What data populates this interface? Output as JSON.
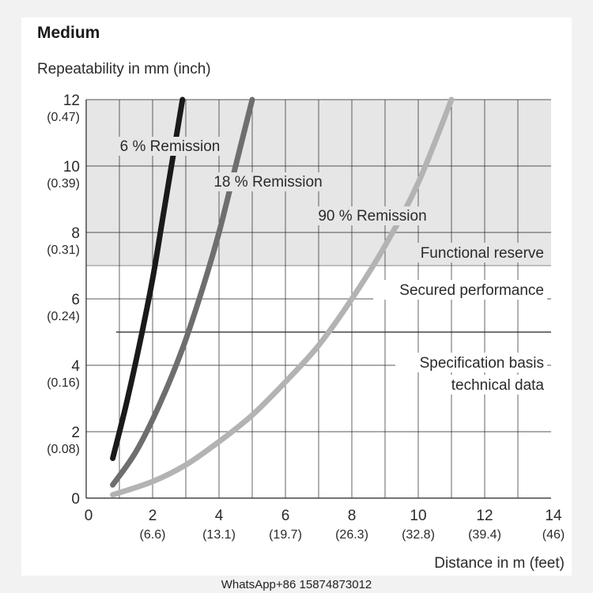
{
  "title": "Medium",
  "watermark": "WhatsApp+86 15874873012",
  "colors": {
    "page_bg": "#f2f2f2",
    "panel_bg": "#ffffff",
    "reserve_zone": "#e6e6e6",
    "grid": "#222222",
    "series_6": "#1a1a1a",
    "series_18": "#6e6e6e",
    "series_90": "#b3b3b3"
  },
  "chart_data": {
    "type": "line",
    "ylabel": "Repeatability in mm (inch)",
    "xlabel": "Distance in m (feet)",
    "xlim": [
      0,
      14
    ],
    "ylim": [
      0,
      12
    ],
    "x_ticks": [
      {
        "v": 0,
        "main": "0",
        "sub": ""
      },
      {
        "v": 2,
        "main": "2",
        "sub": "(6.6)"
      },
      {
        "v": 4,
        "main": "4",
        "sub": "(13.1)"
      },
      {
        "v": 6,
        "main": "6",
        "sub": "(19.7)"
      },
      {
        "v": 8,
        "main": "8",
        "sub": "(26.3)"
      },
      {
        "v": 10,
        "main": "10",
        "sub": "(32.8)"
      },
      {
        "v": 12,
        "main": "12",
        "sub": "(39.4)"
      },
      {
        "v": 14,
        "main": "14",
        "sub": "(46)"
      }
    ],
    "y_ticks": [
      {
        "v": 0,
        "main": "0",
        "sub": ""
      },
      {
        "v": 2,
        "main": "2",
        "sub": "(0.08)"
      },
      {
        "v": 4,
        "main": "4",
        "sub": "(0.16)"
      },
      {
        "v": 6,
        "main": "6",
        "sub": "(0.24)"
      },
      {
        "v": 8,
        "main": "8",
        "sub": "(0.31)"
      },
      {
        "v": 10,
        "main": "10",
        "sub": "(0.39)"
      },
      {
        "v": 12,
        "main": "12",
        "sub": "(0.47)"
      }
    ],
    "grid": true,
    "zones": {
      "reserve_from": 7,
      "specification_line": 5,
      "labels": [
        "Functional reserve",
        "Secured performance",
        "Specification basis",
        "technical data"
      ]
    },
    "series": [
      {
        "name": "6 % Remission",
        "x": [
          0.8,
          1.2,
          1.6,
          2.0,
          2.3,
          2.6,
          2.9
        ],
        "y": [
          1.2,
          2.8,
          4.6,
          6.6,
          8.4,
          10.2,
          12.0
        ]
      },
      {
        "name": "18 % Remission",
        "x": [
          0.8,
          1.5,
          2.2,
          2.9,
          3.5,
          4.0,
          4.5,
          5.0
        ],
        "y": [
          0.4,
          1.4,
          2.8,
          4.5,
          6.3,
          8.0,
          10.0,
          12.0
        ]
      },
      {
        "name": "90 % Remission",
        "x": [
          0.8,
          2.0,
          3.0,
          4.0,
          5.0,
          6.0,
          7.0,
          8.0,
          9.0,
          10.0,
          11.0
        ],
        "y": [
          0.1,
          0.5,
          1.0,
          1.7,
          2.5,
          3.5,
          4.6,
          6.0,
          7.6,
          9.5,
          12.0
        ]
      }
    ]
  }
}
